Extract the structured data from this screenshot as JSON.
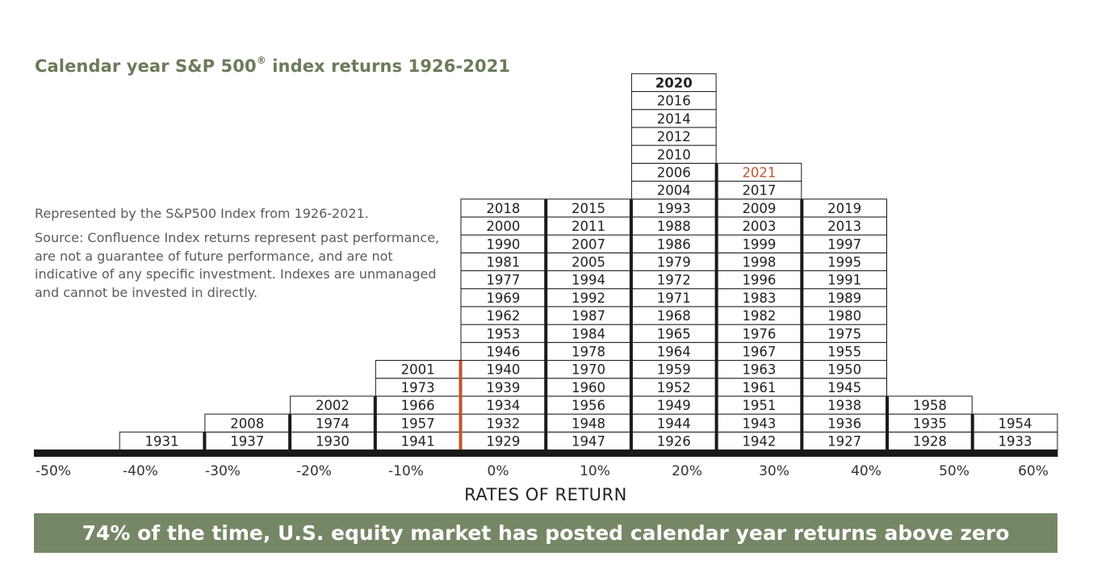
{
  "title_main": "Calendar year S&P 500",
  "title_reg": "®",
  "title_rest": " index returns 1926-2021",
  "note_represented": "Represented by the S&P500 Index from 1926-2021.",
  "note_source": "Source: Confluence Index returns represent past performance, are not a guarantee of future performance, and are not indicative of any specific investment. Indexes are unmanaged and cannot be invested in directly.",
  "banner": "74% of the time, U.S. equity market has posted calendar year returns above zero",
  "colors": {
    "title": "#6b7b59",
    "banner_bg": "#768766",
    "highlight": "#c0562a",
    "axis": "#1a1a1a"
  },
  "chart_data": {
    "type": "table",
    "xlabel": "RATES OF RETURN",
    "x_ticks": [
      "-50%",
      "-40%",
      "-30%",
      "-20%",
      "-10%",
      "0%",
      "10%",
      "20%",
      "30%",
      "40%",
      "50%",
      "60%"
    ],
    "zero_marker_range": "0% to 10%",
    "highlight_year": "2021",
    "bins": [
      {
        "range": "-50% to -40%",
        "years": []
      },
      {
        "range": "-40% to -30%",
        "years": [
          "1931"
        ]
      },
      {
        "range": "-30% to -20%",
        "years": [
          "1937",
          "2008"
        ]
      },
      {
        "range": "-20% to -10%",
        "years": [
          "1930",
          "1974",
          "2002"
        ]
      },
      {
        "range": "-10% to 0%",
        "years": [
          "1941",
          "1957",
          "1966",
          "1973",
          "2001"
        ]
      },
      {
        "range": "0% to 10%",
        "years": [
          "1929",
          "1932",
          "1934",
          "1939",
          "1940",
          "1946",
          "1953",
          "1962",
          "1969",
          "1977",
          "1981",
          "1990",
          "2000",
          "2018"
        ]
      },
      {
        "range": "10% to 20%",
        "years": [
          "1947",
          "1948",
          "1956",
          "1960",
          "1970",
          "1978",
          "1984",
          "1987",
          "1992",
          "1994",
          "2005",
          "2007",
          "2011",
          "2015"
        ]
      },
      {
        "range": "20% to 30%",
        "years": [
          "1926",
          "1944",
          "1949",
          "1952",
          "1959",
          "1964",
          "1965",
          "1968",
          "1971",
          "1972",
          "1979",
          "1986",
          "1988",
          "1993",
          "2004",
          "2006",
          "2010",
          "2012",
          "2014",
          "2016",
          "2020"
        ]
      },
      {
        "range": "30% to 40%",
        "years": [
          "1942",
          "1943",
          "1951",
          "1961",
          "1963",
          "1967",
          "1976",
          "1982",
          "1983",
          "1996",
          "1998",
          "1999",
          "2003",
          "2009",
          "2017",
          "2021"
        ]
      },
      {
        "range": "40% to 50%",
        "years": [
          "1927",
          "1936",
          "1938",
          "1945",
          "1950",
          "1955",
          "1975",
          "1980",
          "1989",
          "1991",
          "1995",
          "1997",
          "2013",
          "2019"
        ]
      },
      {
        "range": "50% to 60%",
        "years": [
          "1928",
          "1935",
          "1958"
        ]
      },
      {
        "range": "60% to 70%",
        "years": [
          "1933",
          "1954"
        ]
      }
    ]
  }
}
